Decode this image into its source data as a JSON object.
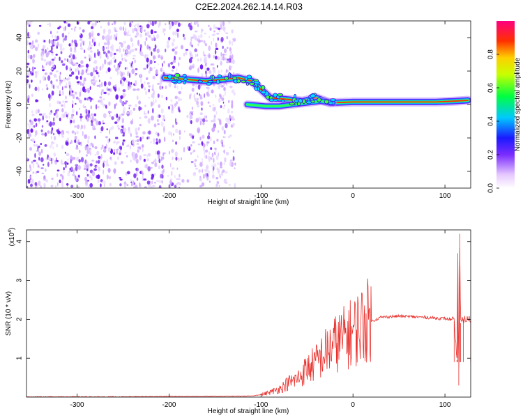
{
  "title": "C2E2.2024.262.14.14.R03",
  "chart_data": [
    {
      "type": "heatmap",
      "xlabel": "Height of straight line (km)",
      "ylabel": "Frequency (Hz)",
      "xlim": [
        -355,
        128
      ],
      "ylim": [
        -50,
        50
      ],
      "xticks": [
        -300,
        -200,
        -100,
        0,
        100
      ],
      "yticks": [
        -40,
        -20,
        0,
        20,
        40
      ],
      "noise_region": [
        -355,
        -128
      ],
      "ridge": [
        {
          "x": -205,
          "y": 16
        },
        {
          "x": -180,
          "y": 15
        },
        {
          "x": -160,
          "y": 14
        },
        {
          "x": -140,
          "y": 15
        },
        {
          "x": -125,
          "y": 16
        },
        {
          "x": -110,
          "y": 14
        },
        {
          "x": -100,
          "y": 9
        },
        {
          "x": -90,
          "y": 4
        },
        {
          "x": -70,
          "y": 3
        },
        {
          "x": -55,
          "y": 2
        },
        {
          "x": -40,
          "y": 4
        },
        {
          "x": -25,
          "y": 1
        },
        {
          "x": 0,
          "y": 1.5
        },
        {
          "x": 30,
          "y": 1.5
        },
        {
          "x": 60,
          "y": 1.5
        },
        {
          "x": 90,
          "y": 1.5
        },
        {
          "x": 110,
          "y": 2
        },
        {
          "x": 125,
          "y": 2.5
        }
      ],
      "colorbar": {
        "label": "Normalized spectral amplitude",
        "ticks": [
          0.0,
          0.2,
          0.4,
          0.6,
          0.8
        ],
        "tick_labels": [
          "0.0",
          "0.2",
          "0.4",
          "0.6",
          "0.8"
        ],
        "range": [
          0,
          1
        ]
      }
    },
    {
      "type": "line",
      "xlabel": "Height of straight line (km)",
      "ylabel": "SNR (10 * v/v)",
      "multiplier": "(x10",
      "multiplier_exp": "4",
      "multiplier_close": ")",
      "xlim": [
        -355,
        128
      ],
      "ylim": [
        0,
        4.3
      ],
      "xticks": [
        -300,
        -200,
        -100,
        0,
        100
      ],
      "yticks": [
        1,
        2,
        3,
        4
      ],
      "color": "#e8302c",
      "series": [
        {
          "points": [
            {
              "x": -355,
              "y": 0.0
            },
            {
              "x": -250,
              "y": 0.0
            },
            {
              "x": -200,
              "y": 0.01
            },
            {
              "x": -150,
              "y": 0.01
            },
            {
              "x": -110,
              "y": 0.02
            },
            {
              "x": -100,
              "y": 0.06
            },
            {
              "x": -90,
              "y": 0.12
            },
            {
              "x": -80,
              "y": 0.2
            },
            {
              "x": -70,
              "y": 0.35
            },
            {
              "x": -60,
              "y": 0.45
            },
            {
              "x": -50,
              "y": 0.7
            },
            {
              "x": -40,
              "y": 0.85
            },
            {
              "x": -30,
              "y": 1.1
            },
            {
              "x": -20,
              "y": 1.3
            },
            {
              "x": -10,
              "y": 1.45
            },
            {
              "x": 0,
              "y": 1.6
            },
            {
              "x": 10,
              "y": 1.8
            },
            {
              "x": 20,
              "y": 1.95
            },
            {
              "x": 30,
              "y": 2.05
            },
            {
              "x": 40,
              "y": 2.07
            },
            {
              "x": 50,
              "y": 2.08
            },
            {
              "x": 60,
              "y": 2.07
            },
            {
              "x": 70,
              "y": 2.06
            },
            {
              "x": 80,
              "y": 2.05
            },
            {
              "x": 90,
              "y": 2.03
            },
            {
              "x": 100,
              "y": 2.02
            },
            {
              "x": 105,
              "y": 2.0
            },
            {
              "x": 110,
              "y": 1.95
            },
            {
              "x": 113,
              "y": 0.95
            },
            {
              "x": 114,
              "y": 3.7
            },
            {
              "x": 115,
              "y": 0.3
            },
            {
              "x": 116,
              "y": 4.2
            },
            {
              "x": 117,
              "y": 1.9
            },
            {
              "x": 120,
              "y": 2.0
            },
            {
              "x": 128,
              "y": 2.0
            }
          ]
        }
      ]
    }
  ]
}
